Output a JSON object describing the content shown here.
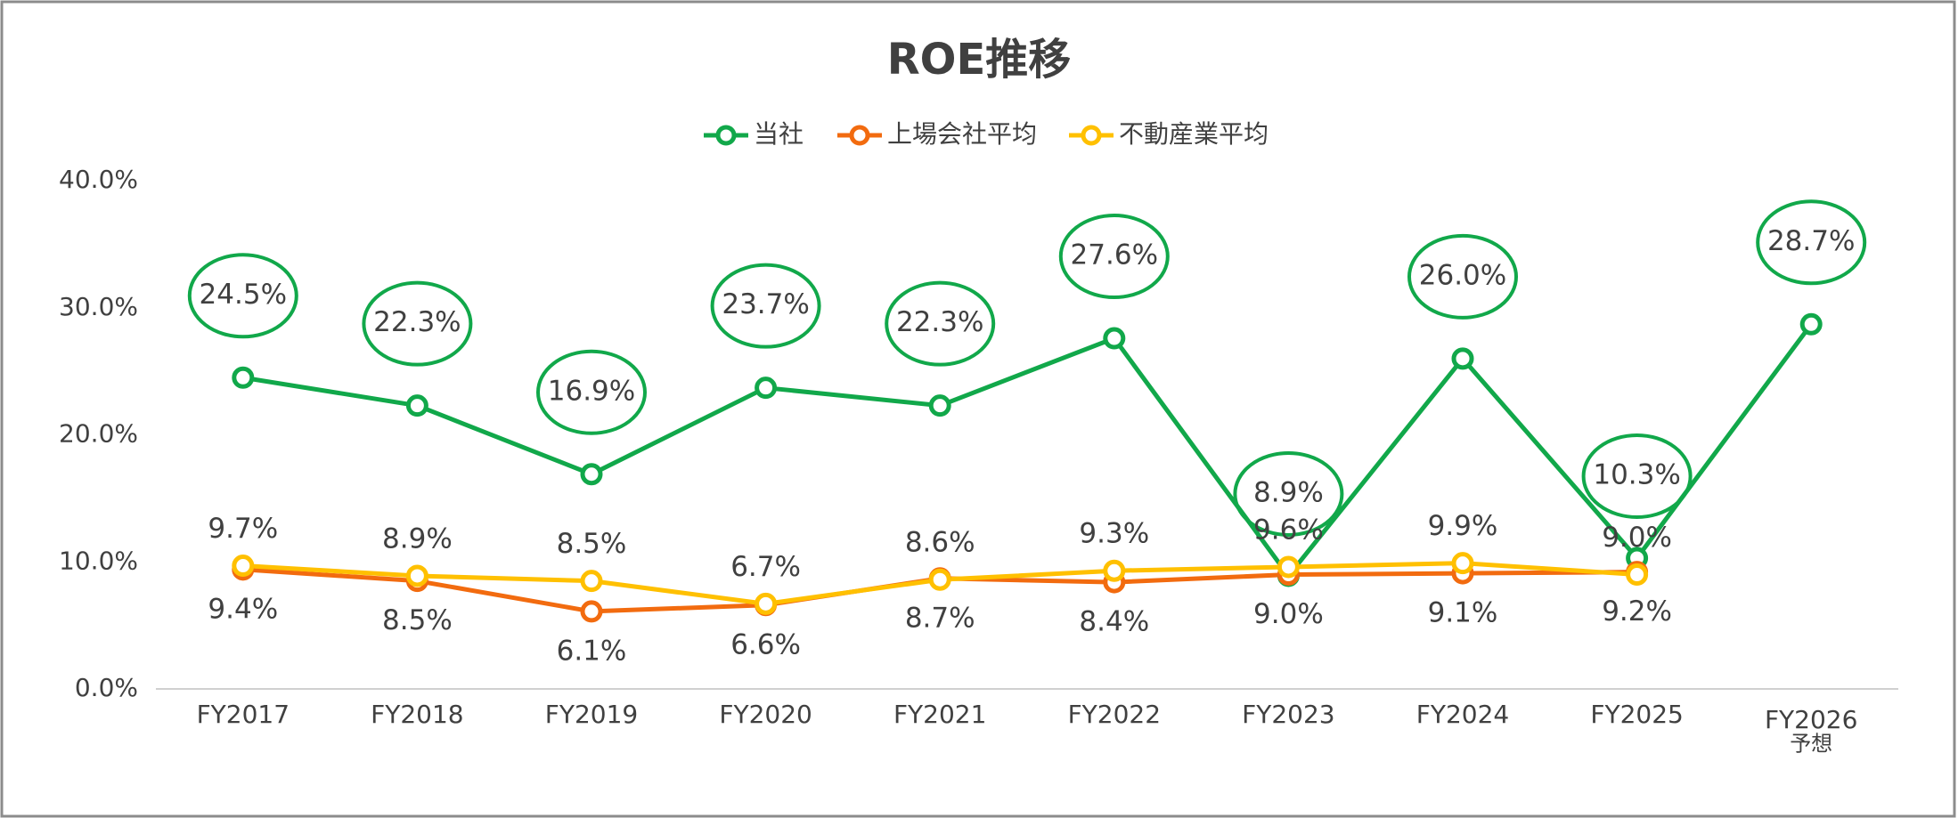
{
  "chart_data": {
    "type": "line",
    "title": "ROE推移",
    "categories": [
      "FY2017",
      "FY2018",
      "FY2019",
      "FY2020",
      "FY2021",
      "FY2022",
      "FY2023",
      "FY2024",
      "FY2025",
      "FY2026\n予想"
    ],
    "series": [
      {
        "name": "当社",
        "color": "#11a84a",
        "values": [
          24.5,
          22.3,
          16.9,
          23.7,
          22.3,
          27.6,
          8.9,
          26.0,
          10.3,
          28.7
        ],
        "value_labels": [
          "24.5%",
          "22.3%",
          "16.9%",
          "23.7%",
          "22.3%",
          "27.6%",
          "8.9%",
          "26.0%",
          "10.3%",
          "28.7%"
        ]
      },
      {
        "name": "上場会社平均",
        "color": "#f26b0f",
        "values": [
          9.4,
          8.5,
          6.1,
          6.6,
          8.7,
          8.4,
          9.0,
          9.1,
          9.2,
          null
        ],
        "value_labels": [
          "9.4%",
          "8.5%",
          "6.1%",
          "6.6%",
          "8.7%",
          "8.4%",
          "9.0%",
          "9.1%",
          "9.2%",
          null
        ]
      },
      {
        "name": "不動産業平均",
        "color": "#ffc000",
        "values": [
          9.7,
          8.9,
          8.5,
          6.7,
          8.6,
          9.3,
          9.6,
          9.9,
          9.0,
          null
        ],
        "value_labels": [
          "9.7%",
          "8.9%",
          "8.5%",
          "6.7%",
          "8.6%",
          "9.3%",
          "9.6%",
          "9.9%",
          "9.0%",
          null
        ]
      }
    ],
    "ylim": [
      0,
      40
    ],
    "yticks": [
      {
        "value": 0,
        "label": "0.0%"
      },
      {
        "value": 10,
        "label": "10.0%"
      },
      {
        "value": 20,
        "label": "20.0%"
      },
      {
        "value": 30,
        "label": "30.0%"
      },
      {
        "value": 40,
        "label": "40.0%"
      }
    ],
    "legend": "top"
  }
}
